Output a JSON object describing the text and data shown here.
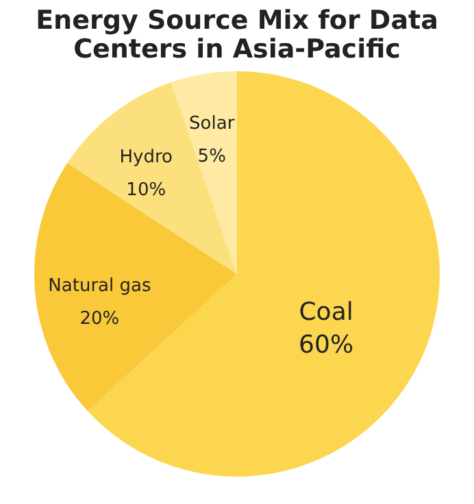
{
  "chart_data": {
    "type": "pie",
    "title": "Energy Source Mix for Data Centers in Asia-Pacific",
    "categories": [
      "Coal",
      "Natural gas",
      "Hydro",
      "Solar"
    ],
    "values": [
      60,
      20,
      10,
      5
    ],
    "value_labels": [
      "60%",
      "20%",
      "10%",
      "5%"
    ],
    "colors": [
      "#fdd64f",
      "#f9c93a",
      "#fde07e",
      "#feeaa3"
    ],
    "legend": false
  }
}
